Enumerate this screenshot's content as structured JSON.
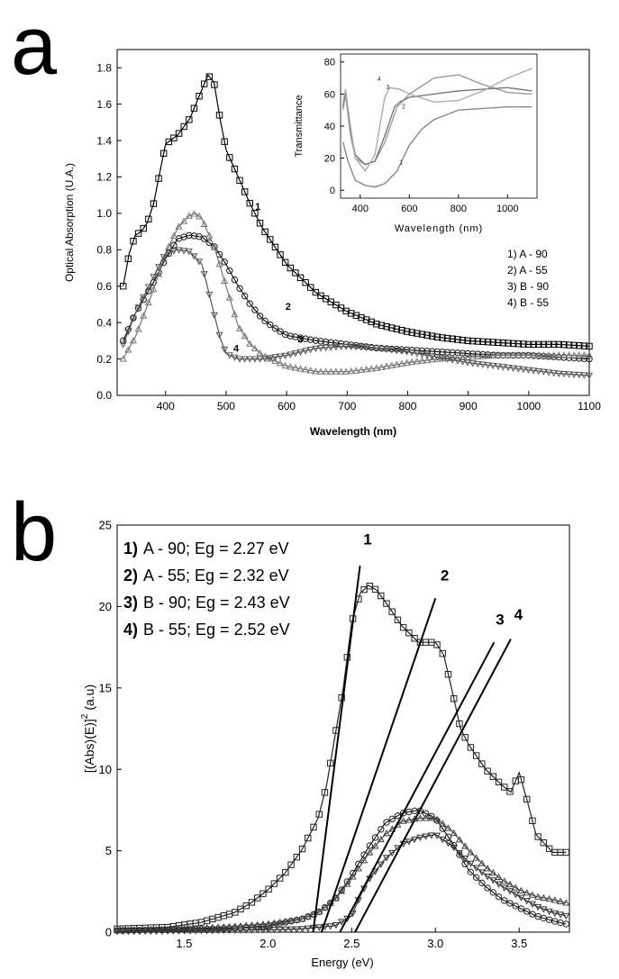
{
  "chart_data": [
    {
      "type": "line",
      "panel_label": "a",
      "title": "",
      "xlabel": "Wavelength (nm)",
      "ylabel": "Optical Absorption (U.A.)",
      "xlim": [
        320,
        1100
      ],
      "ylim": [
        0.0,
        1.9
      ],
      "x_ticks": [
        400,
        500,
        600,
        700,
        800,
        900,
        1000,
        1100
      ],
      "y_ticks": [
        0.0,
        0.2,
        0.4,
        0.6,
        0.8,
        1.0,
        1.2,
        1.4,
        1.6,
        1.8
      ],
      "legend": [
        "1) A - 90",
        "2) A - 55",
        "3) B - 90",
        "4) B - 55"
      ],
      "legend_position": "right",
      "series": [
        {
          "name": "1) A - 90",
          "label": "1",
          "marker": "square",
          "x": [
            330,
            340,
            350,
            360,
            370,
            380,
            400,
            420,
            440,
            460,
            470,
            480,
            490,
            500,
            520,
            540,
            560,
            600,
            650,
            700,
            750,
            800,
            850,
            900,
            950,
            1000,
            1050,
            1100
          ],
          "y": [
            0.6,
            0.78,
            0.88,
            0.9,
            0.95,
            1.05,
            1.38,
            1.43,
            1.52,
            1.68,
            1.76,
            1.72,
            1.52,
            1.35,
            1.2,
            1.05,
            0.92,
            0.72,
            0.56,
            0.46,
            0.39,
            0.35,
            0.32,
            0.3,
            0.29,
            0.28,
            0.28,
            0.27
          ]
        },
        {
          "name": "2) A - 55",
          "label": "2",
          "marker": "circle",
          "x": [
            330,
            350,
            380,
            400,
            420,
            440,
            460,
            480,
            500,
            520,
            540,
            560,
            580,
            600,
            650,
            700,
            750,
            800,
            850,
            900,
            950,
            1000,
            1050,
            1100
          ],
          "y": [
            0.3,
            0.45,
            0.62,
            0.75,
            0.86,
            0.88,
            0.87,
            0.82,
            0.72,
            0.6,
            0.5,
            0.42,
            0.37,
            0.33,
            0.3,
            0.28,
            0.26,
            0.25,
            0.24,
            0.23,
            0.22,
            0.22,
            0.21,
            0.2
          ]
        },
        {
          "name": "3) B - 90",
          "label": "3",
          "marker": "triangle-up",
          "x": [
            330,
            350,
            380,
            400,
            420,
            440,
            450,
            460,
            480,
            500,
            520,
            540,
            560,
            600,
            650,
            700,
            750,
            800,
            850,
            900,
            950,
            1000,
            1050,
            1100
          ],
          "y": [
            0.2,
            0.32,
            0.58,
            0.78,
            0.92,
            0.99,
            1.0,
            0.97,
            0.82,
            0.6,
            0.38,
            0.28,
            0.22,
            0.16,
            0.13,
            0.13,
            0.15,
            0.18,
            0.2,
            0.21,
            0.22,
            0.22,
            0.22,
            0.22
          ]
        },
        {
          "name": "4) B - 55",
          "label": "4",
          "marker": "triangle-down",
          "x": [
            330,
            350,
            380,
            400,
            420,
            440,
            460,
            480,
            490,
            500,
            520,
            560,
            600,
            650,
            700,
            750,
            800,
            850,
            900,
            950,
            1000,
            1050,
            1100
          ],
          "y": [
            0.28,
            0.45,
            0.65,
            0.78,
            0.8,
            0.79,
            0.72,
            0.45,
            0.32,
            0.23,
            0.2,
            0.2,
            0.22,
            0.26,
            0.27,
            0.26,
            0.24,
            0.21,
            0.18,
            0.16,
            0.14,
            0.12,
            0.11
          ]
        }
      ]
    },
    {
      "type": "line",
      "panel_label": "a-inset",
      "title": "",
      "xlabel": "Wavelength (nm)",
      "ylabel": "Transmittance",
      "xlim": [
        320,
        1120
      ],
      "ylim": [
        -5,
        85
      ],
      "x_ticks": [
        400,
        600,
        800,
        1000
      ],
      "y_ticks": [
        0,
        20,
        40,
        60,
        80
      ],
      "series": [
        {
          "name": "1",
          "label": "1",
          "x": [
            330,
            350,
            380,
            420,
            460,
            500,
            550,
            600,
            650,
            700,
            800,
            900,
            1000,
            1100
          ],
          "y": [
            30,
            18,
            6,
            3,
            2,
            4,
            12,
            28,
            38,
            44,
            50,
            51,
            52,
            52
          ]
        },
        {
          "name": "2",
          "label": "2",
          "x": [
            330,
            340,
            360,
            380,
            420,
            460,
            500,
            550,
            600,
            650,
            700,
            800,
            900,
            1000,
            1100
          ],
          "y": [
            50,
            60,
            35,
            20,
            16,
            18,
            30,
            52,
            60,
            65,
            70,
            72,
            66,
            61,
            60
          ]
        },
        {
          "name": "3",
          "label": "3",
          "x": [
            330,
            340,
            360,
            380,
            420,
            460,
            500,
            540,
            560,
            600,
            700,
            800,
            900,
            1000,
            1100
          ],
          "y": [
            52,
            62,
            38,
            22,
            16,
            18,
            34,
            52,
            55,
            58,
            60,
            62,
            63,
            64,
            62
          ]
        },
        {
          "name": "4",
          "label": "4",
          "x": [
            330,
            340,
            360,
            380,
            420,
            460,
            480,
            500,
            520,
            560,
            600,
            700,
            800,
            900,
            1000,
            1100
          ],
          "y": [
            55,
            63,
            40,
            20,
            12,
            22,
            40,
            58,
            64,
            63,
            60,
            55,
            56,
            62,
            70,
            76
          ]
        }
      ]
    },
    {
      "type": "line",
      "panel_label": "b",
      "title": "",
      "xlabel": "Energy (eV)",
      "ylabel": "[(Abs)(E)]",
      "ylabel_sup": "2",
      "ylabel_suffix": "(a.u)",
      "xlim": [
        1.1,
        3.8
      ],
      "ylim": [
        0,
        25
      ],
      "x_ticks": [
        1.5,
        2.0,
        2.5,
        3.0,
        3.5
      ],
      "y_ticks": [
        0,
        5,
        10,
        15,
        20,
        25
      ],
      "legend": [
        {
          "num": "1)",
          "text": "A - 90; Eg = 2.27 eV"
        },
        {
          "num": "2)",
          "text": "A - 55; Eg = 2.32 eV"
        },
        {
          "num": "3)",
          "text": "B - 90; Eg = 2.43 eV"
        },
        {
          "num": "4)",
          "text": "B - 55; Eg = 2.52 eV"
        }
      ],
      "legend_position": "top-left",
      "series": [
        {
          "name": "1) A - 90",
          "marker": "square",
          "x": [
            1.1,
            1.4,
            1.6,
            1.8,
            1.9,
            2.0,
            2.1,
            2.2,
            2.3,
            2.35,
            2.4,
            2.45,
            2.5,
            2.55,
            2.6,
            2.65,
            2.7,
            2.8,
            2.9,
            3.0,
            3.05,
            3.1,
            3.15,
            3.2,
            3.3,
            3.4,
            3.45,
            3.5,
            3.55,
            3.6,
            3.7,
            3.78
          ],
          "y": [
            0.2,
            0.3,
            0.6,
            1.2,
            1.8,
            2.6,
            3.6,
            5.0,
            7.0,
            9.0,
            12.0,
            15.0,
            19.0,
            20.8,
            21.3,
            21.0,
            20.3,
            18.8,
            17.8,
            17.8,
            17.0,
            14.8,
            12.5,
            11.5,
            10.0,
            9.0,
            8.6,
            9.8,
            8.0,
            6.0,
            4.9,
            4.9
          ]
        },
        {
          "name": "2) A - 55",
          "marker": "circle",
          "x": [
            1.1,
            1.5,
            1.8,
            2.0,
            2.2,
            2.3,
            2.4,
            2.5,
            2.6,
            2.7,
            2.8,
            2.9,
            3.0,
            3.1,
            3.2,
            3.3,
            3.4,
            3.5,
            3.6,
            3.7,
            3.78
          ],
          "y": [
            0.1,
            0.15,
            0.25,
            0.4,
            0.8,
            1.2,
            2.0,
            3.5,
            5.2,
            6.7,
            7.3,
            7.5,
            7.0,
            5.5,
            3.8,
            2.8,
            2.0,
            1.5,
            1.0,
            0.7,
            0.5
          ]
        },
        {
          "name": "3) B - 90",
          "marker": "triangle-up",
          "x": [
            1.1,
            1.5,
            1.8,
            2.0,
            2.2,
            2.3,
            2.4,
            2.5,
            2.6,
            2.7,
            2.8,
            2.9,
            3.0,
            3.1,
            3.2,
            3.3,
            3.4,
            3.5,
            3.6,
            3.7,
            3.78
          ],
          "y": [
            0.1,
            0.2,
            0.35,
            0.5,
            0.8,
            1.2,
            2.0,
            3.3,
            4.8,
            6.0,
            6.8,
            7.0,
            7.0,
            6.2,
            5.0,
            4.0,
            3.2,
            2.6,
            2.2,
            2.0,
            1.8
          ]
        },
        {
          "name": "4) B - 55",
          "marker": "triangle-down",
          "x": [
            1.1,
            1.5,
            1.8,
            2.0,
            2.2,
            2.4,
            2.5,
            2.55,
            2.6,
            2.7,
            2.8,
            2.9,
            3.0,
            3.1,
            3.2,
            3.3,
            3.4,
            3.5,
            3.6,
            3.7,
            3.78
          ],
          "y": [
            0.05,
            0.08,
            0.12,
            0.15,
            0.2,
            0.4,
            1.0,
            2.2,
            3.2,
            4.5,
            5.4,
            5.8,
            6.0,
            5.3,
            4.3,
            3.5,
            2.8,
            2.2,
            1.6,
            1.2,
            1.0
          ]
        }
      ],
      "fit_lines": [
        {
          "label": "1",
          "x": [
            2.27,
            2.55
          ],
          "y": [
            0,
            22.5
          ]
        },
        {
          "label": "2",
          "x": [
            2.32,
            3.0
          ],
          "y": [
            0,
            20.5
          ]
        },
        {
          "label": "3",
          "x": [
            2.43,
            3.35
          ],
          "y": [
            0,
            17.8
          ]
        },
        {
          "label": "4",
          "x": [
            2.52,
            3.45
          ],
          "y": [
            0,
            18.0
          ]
        }
      ]
    }
  ]
}
